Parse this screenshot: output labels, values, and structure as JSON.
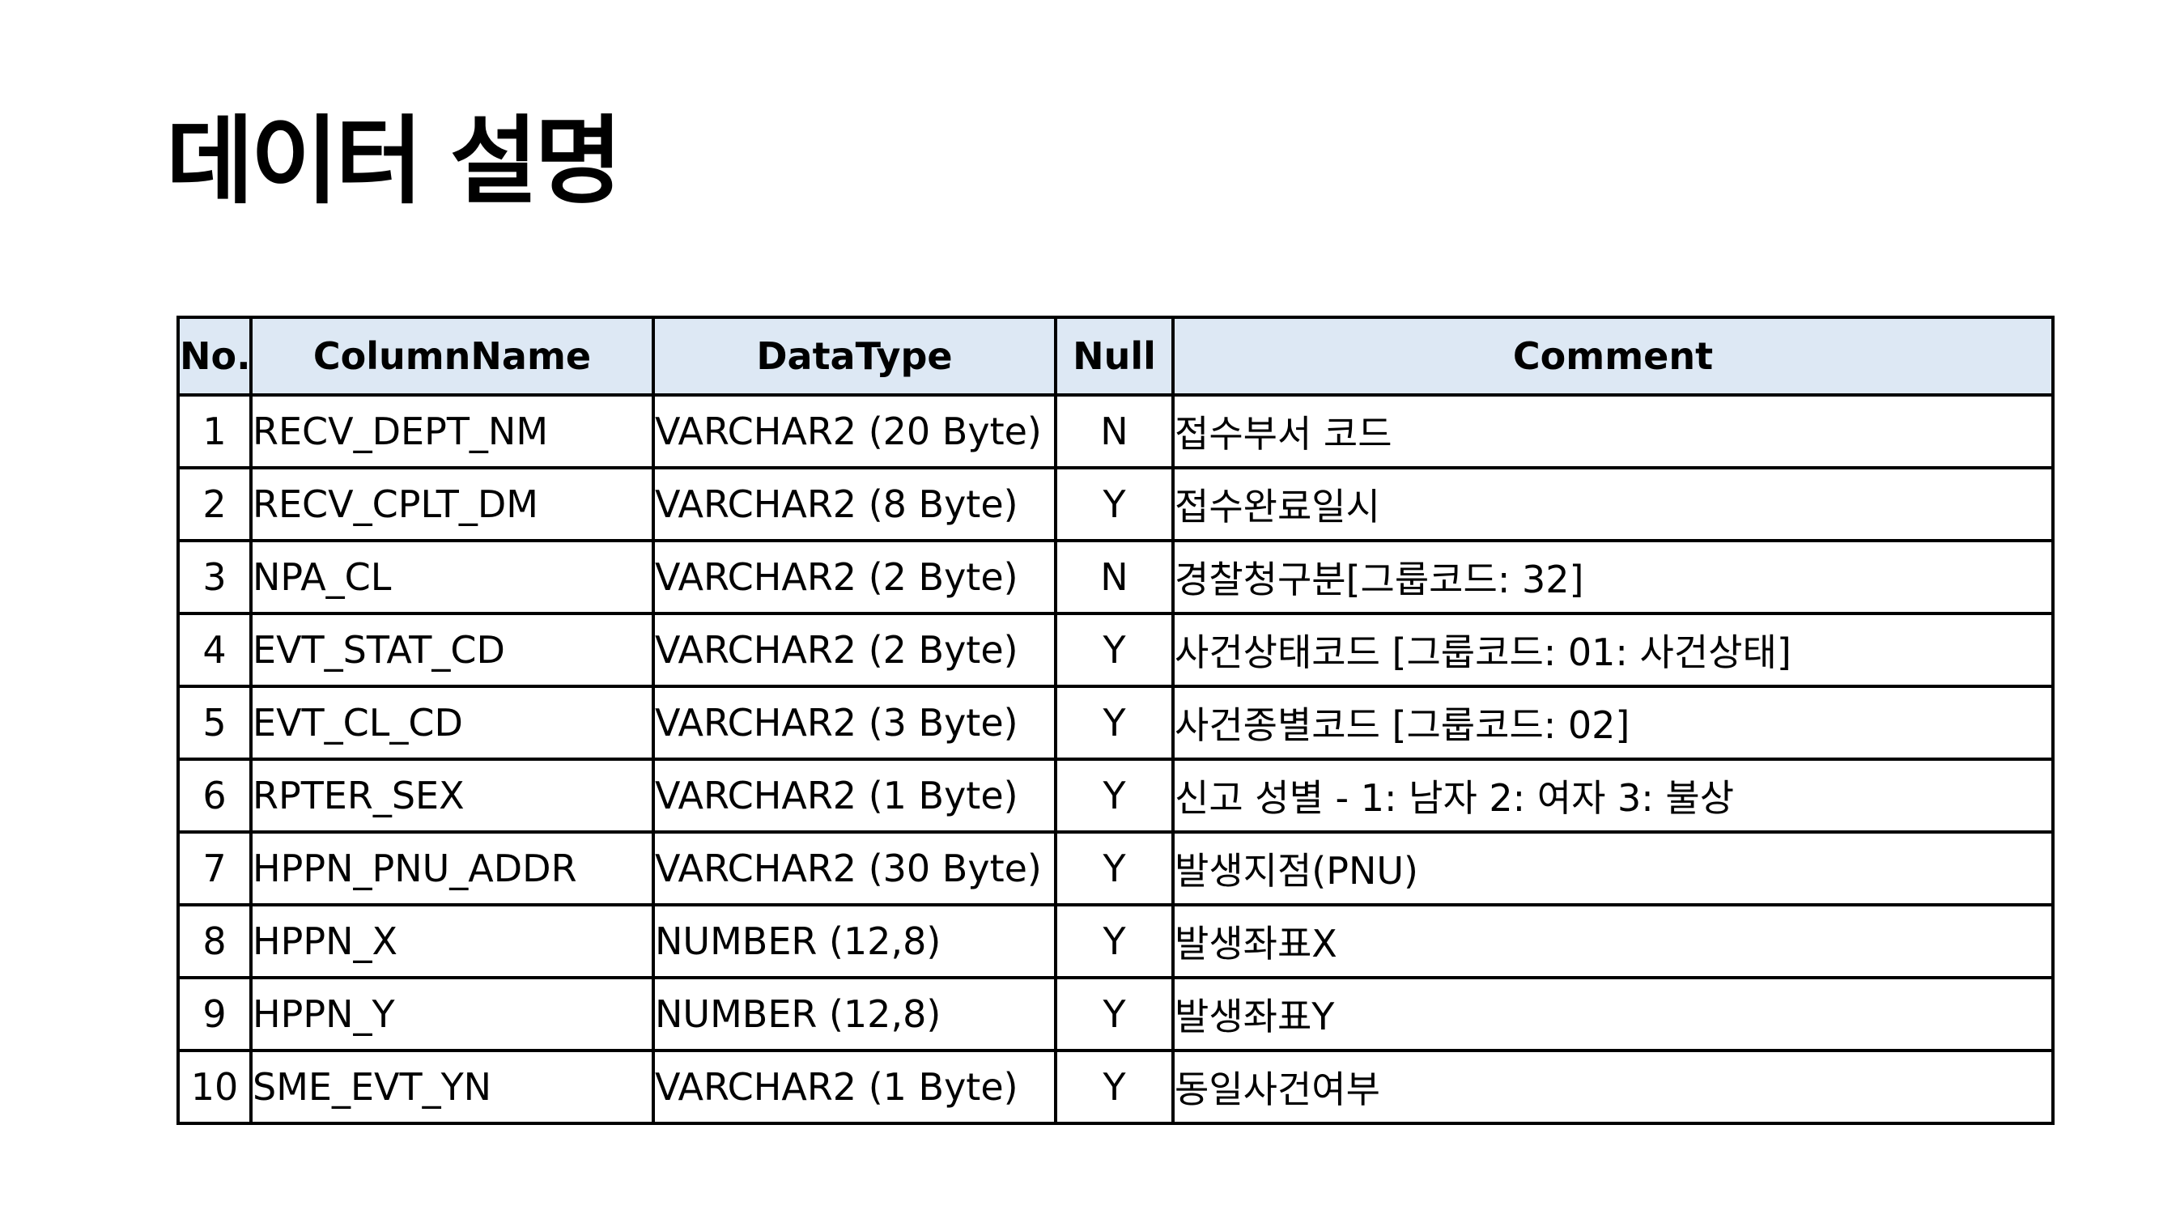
{
  "title": "데이터 설명",
  "table": {
    "headers": [
      "No.",
      "ColumnName",
      "DataType",
      "Null",
      "Comment"
    ],
    "rows": [
      {
        "no": "1",
        "column": "RECV_DEPT_NM",
        "type": "VARCHAR2 (20 Byte)",
        "null": "N",
        "comment": "접수부서 코드"
      },
      {
        "no": "2",
        "column": "RECV_CPLT_DM",
        "type": "VARCHAR2 (8 Byte)",
        "null": "Y",
        "comment": "접수완료일시"
      },
      {
        "no": "3",
        "column": "NPA_CL",
        "type": "VARCHAR2 (2 Byte)",
        "null": "N",
        "comment": "경찰청구분[그룹코드: 32]"
      },
      {
        "no": "4",
        "column": "EVT_STAT_CD",
        "type": "VARCHAR2 (2 Byte)",
        "null": "Y",
        "comment": "사건상태코드 [그룹코드: 01: 사건상태]"
      },
      {
        "no": "5",
        "column": "EVT_CL_CD",
        "type": "VARCHAR2 (3 Byte)",
        "null": "Y",
        "comment": "사건종별코드 [그룹코드: 02]"
      },
      {
        "no": "6",
        "column": "RPTER_SEX",
        "type": "VARCHAR2 (1 Byte)",
        "null": "Y",
        "comment": "신고 성별 - 1: 남자  2: 여자  3: 불상"
      },
      {
        "no": "7",
        "column": "HPPN_PNU_ADDR",
        "type": "VARCHAR2 (30 Byte)",
        "null": "Y",
        "comment": "발생지점(PNU)"
      },
      {
        "no": "8",
        "column": "HPPN_X",
        "type": "NUMBER (12,8)",
        "null": "Y",
        "comment": "발생좌표X"
      },
      {
        "no": "9",
        "column": "HPPN_Y",
        "type": "NUMBER (12,8)",
        "null": "Y",
        "comment": "발생좌표Y"
      },
      {
        "no": "10",
        "column": "SME_EVT_YN",
        "type": "VARCHAR2 (1 Byte)",
        "null": "Y",
        "comment": "동일사건여부"
      }
    ]
  },
  "colors": {
    "header_background": "#dde8f4",
    "border": "#000000"
  }
}
